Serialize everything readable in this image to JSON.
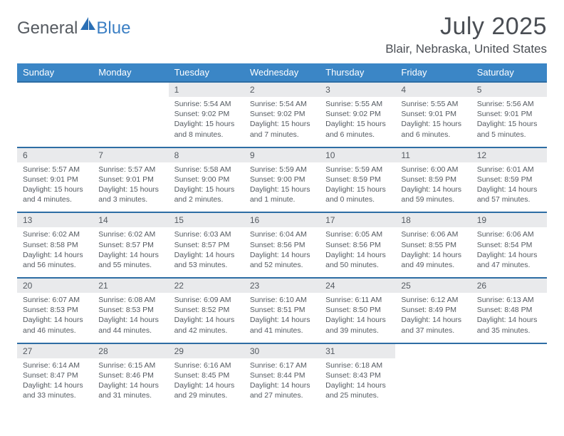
{
  "brand": {
    "general": "General",
    "blue": "Blue",
    "general_color": "#555a60",
    "blue_color": "#3b7fc4",
    "sail_color": "#2a6fb5"
  },
  "title": {
    "month": "July 2025",
    "location": "Blair, Nebraska, United States",
    "month_fontsize": 34,
    "location_fontsize": 17,
    "color": "#4a4e54"
  },
  "style": {
    "header_bg": "#3b86c6",
    "header_text": "#ffffff",
    "date_bg": "#e9eaec",
    "date_border": "#2e6da4",
    "cell_text": "#545a61",
    "body_bg": "#ffffff",
    "date_fontsize": 12,
    "info_fontsize": 10.5
  },
  "day_names": [
    "Sunday",
    "Monday",
    "Tuesday",
    "Wednesday",
    "Thursday",
    "Friday",
    "Saturday"
  ],
  "weeks": [
    [
      null,
      null,
      {
        "date": "1",
        "sunrise": "Sunrise: 5:54 AM",
        "sunset": "Sunset: 9:02 PM",
        "daylight": "Daylight: 15 hours and 8 minutes."
      },
      {
        "date": "2",
        "sunrise": "Sunrise: 5:54 AM",
        "sunset": "Sunset: 9:02 PM",
        "daylight": "Daylight: 15 hours and 7 minutes."
      },
      {
        "date": "3",
        "sunrise": "Sunrise: 5:55 AM",
        "sunset": "Sunset: 9:02 PM",
        "daylight": "Daylight: 15 hours and 6 minutes."
      },
      {
        "date": "4",
        "sunrise": "Sunrise: 5:55 AM",
        "sunset": "Sunset: 9:01 PM",
        "daylight": "Daylight: 15 hours and 6 minutes."
      },
      {
        "date": "5",
        "sunrise": "Sunrise: 5:56 AM",
        "sunset": "Sunset: 9:01 PM",
        "daylight": "Daylight: 15 hours and 5 minutes."
      }
    ],
    [
      {
        "date": "6",
        "sunrise": "Sunrise: 5:57 AM",
        "sunset": "Sunset: 9:01 PM",
        "daylight": "Daylight: 15 hours and 4 minutes."
      },
      {
        "date": "7",
        "sunrise": "Sunrise: 5:57 AM",
        "sunset": "Sunset: 9:01 PM",
        "daylight": "Daylight: 15 hours and 3 minutes."
      },
      {
        "date": "8",
        "sunrise": "Sunrise: 5:58 AM",
        "sunset": "Sunset: 9:00 PM",
        "daylight": "Daylight: 15 hours and 2 minutes."
      },
      {
        "date": "9",
        "sunrise": "Sunrise: 5:59 AM",
        "sunset": "Sunset: 9:00 PM",
        "daylight": "Daylight: 15 hours and 1 minute."
      },
      {
        "date": "10",
        "sunrise": "Sunrise: 5:59 AM",
        "sunset": "Sunset: 8:59 PM",
        "daylight": "Daylight: 15 hours and 0 minutes."
      },
      {
        "date": "11",
        "sunrise": "Sunrise: 6:00 AM",
        "sunset": "Sunset: 8:59 PM",
        "daylight": "Daylight: 14 hours and 59 minutes."
      },
      {
        "date": "12",
        "sunrise": "Sunrise: 6:01 AM",
        "sunset": "Sunset: 8:59 PM",
        "daylight": "Daylight: 14 hours and 57 minutes."
      }
    ],
    [
      {
        "date": "13",
        "sunrise": "Sunrise: 6:02 AM",
        "sunset": "Sunset: 8:58 PM",
        "daylight": "Daylight: 14 hours and 56 minutes."
      },
      {
        "date": "14",
        "sunrise": "Sunrise: 6:02 AM",
        "sunset": "Sunset: 8:57 PM",
        "daylight": "Daylight: 14 hours and 55 minutes."
      },
      {
        "date": "15",
        "sunrise": "Sunrise: 6:03 AM",
        "sunset": "Sunset: 8:57 PM",
        "daylight": "Daylight: 14 hours and 53 minutes."
      },
      {
        "date": "16",
        "sunrise": "Sunrise: 6:04 AM",
        "sunset": "Sunset: 8:56 PM",
        "daylight": "Daylight: 14 hours and 52 minutes."
      },
      {
        "date": "17",
        "sunrise": "Sunrise: 6:05 AM",
        "sunset": "Sunset: 8:56 PM",
        "daylight": "Daylight: 14 hours and 50 minutes."
      },
      {
        "date": "18",
        "sunrise": "Sunrise: 6:06 AM",
        "sunset": "Sunset: 8:55 PM",
        "daylight": "Daylight: 14 hours and 49 minutes."
      },
      {
        "date": "19",
        "sunrise": "Sunrise: 6:06 AM",
        "sunset": "Sunset: 8:54 PM",
        "daylight": "Daylight: 14 hours and 47 minutes."
      }
    ],
    [
      {
        "date": "20",
        "sunrise": "Sunrise: 6:07 AM",
        "sunset": "Sunset: 8:53 PM",
        "daylight": "Daylight: 14 hours and 46 minutes."
      },
      {
        "date": "21",
        "sunrise": "Sunrise: 6:08 AM",
        "sunset": "Sunset: 8:53 PM",
        "daylight": "Daylight: 14 hours and 44 minutes."
      },
      {
        "date": "22",
        "sunrise": "Sunrise: 6:09 AM",
        "sunset": "Sunset: 8:52 PM",
        "daylight": "Daylight: 14 hours and 42 minutes."
      },
      {
        "date": "23",
        "sunrise": "Sunrise: 6:10 AM",
        "sunset": "Sunset: 8:51 PM",
        "daylight": "Daylight: 14 hours and 41 minutes."
      },
      {
        "date": "24",
        "sunrise": "Sunrise: 6:11 AM",
        "sunset": "Sunset: 8:50 PM",
        "daylight": "Daylight: 14 hours and 39 minutes."
      },
      {
        "date": "25",
        "sunrise": "Sunrise: 6:12 AM",
        "sunset": "Sunset: 8:49 PM",
        "daylight": "Daylight: 14 hours and 37 minutes."
      },
      {
        "date": "26",
        "sunrise": "Sunrise: 6:13 AM",
        "sunset": "Sunset: 8:48 PM",
        "daylight": "Daylight: 14 hours and 35 minutes."
      }
    ],
    [
      {
        "date": "27",
        "sunrise": "Sunrise: 6:14 AM",
        "sunset": "Sunset: 8:47 PM",
        "daylight": "Daylight: 14 hours and 33 minutes."
      },
      {
        "date": "28",
        "sunrise": "Sunrise: 6:15 AM",
        "sunset": "Sunset: 8:46 PM",
        "daylight": "Daylight: 14 hours and 31 minutes."
      },
      {
        "date": "29",
        "sunrise": "Sunrise: 6:16 AM",
        "sunset": "Sunset: 8:45 PM",
        "daylight": "Daylight: 14 hours and 29 minutes."
      },
      {
        "date": "30",
        "sunrise": "Sunrise: 6:17 AM",
        "sunset": "Sunset: 8:44 PM",
        "daylight": "Daylight: 14 hours and 27 minutes."
      },
      {
        "date": "31",
        "sunrise": "Sunrise: 6:18 AM",
        "sunset": "Sunset: 8:43 PM",
        "daylight": "Daylight: 14 hours and 25 minutes."
      },
      null,
      null
    ]
  ]
}
